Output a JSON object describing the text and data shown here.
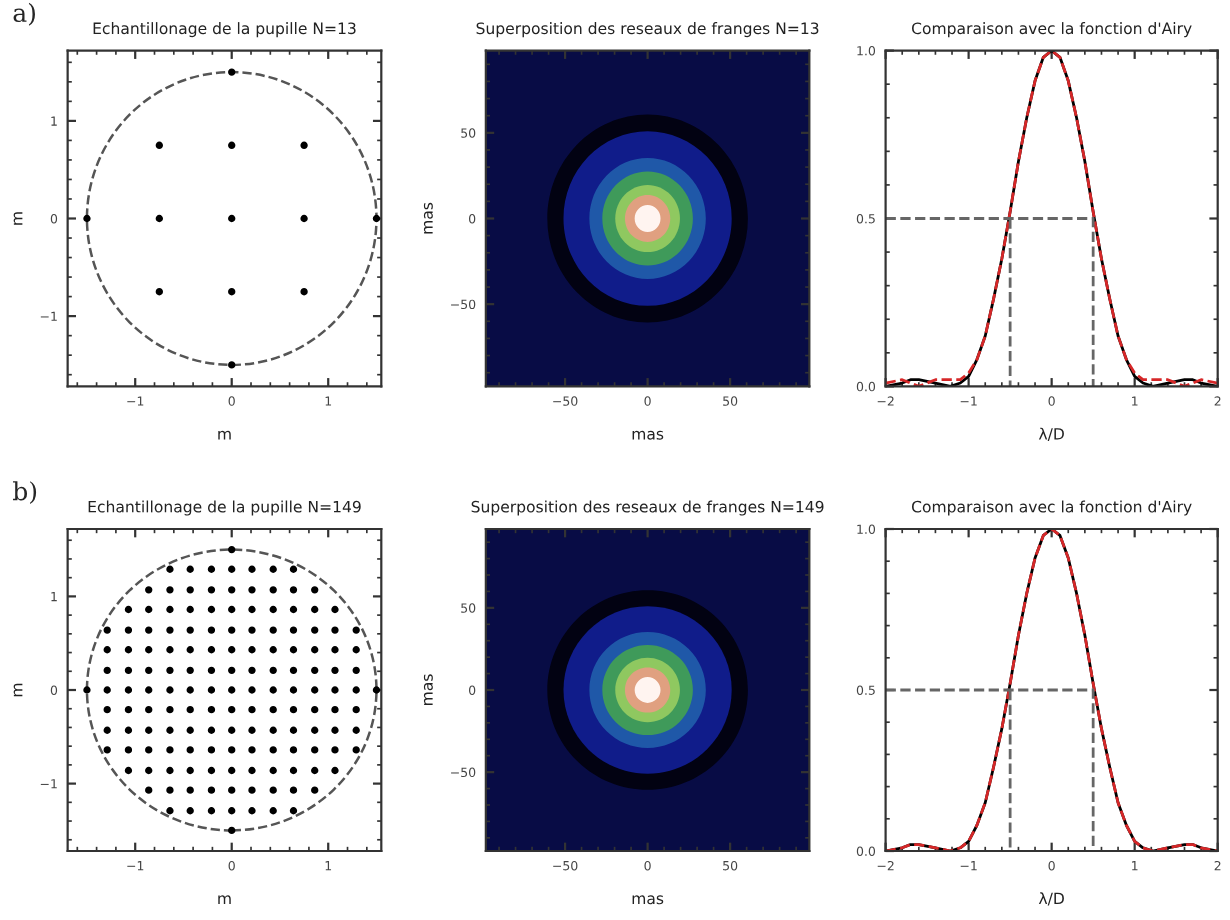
{
  "chart_data": [
    {
      "type": "scatter",
      "title": "Echantillonage de la pupille N=13",
      "xlabel": "m",
      "ylabel": "m",
      "annotations": [
        "a)"
      ],
      "marker": "circle",
      "grid": false,
      "xlim": [
        -1.7,
        1.55
      ],
      "ylim": [
        -1.72,
        1.72
      ],
      "xticks": [
        {
          "value": -1,
          "label": "−1"
        },
        0,
        1
      ],
      "yticks": [
        {
          "value": -1,
          "label": "−1"
        },
        0,
        1
      ],
      "series": [
        {
          "color": "#000000",
          "x": [
            0
          ],
          "values": [
            1.5
          ]
        },
        {
          "color": "#000000",
          "x": [
            -0.75,
            0,
            0.75
          ],
          "values": [
            0.75,
            0.75,
            0.75
          ]
        },
        {
          "color": "#000000",
          "x": [
            -1.5,
            -0.75,
            0,
            0.75,
            1.5
          ],
          "values": [
            0,
            0,
            0,
            0,
            0
          ]
        },
        {
          "color": "#000000",
          "x": [
            -0.75,
            0,
            0.75
          ],
          "values": [
            -0.75,
            -0.75,
            -0.75
          ]
        },
        {
          "color": "#000000",
          "x": [
            0
          ],
          "values": [
            -1.5
          ]
        }
      ]
    },
    {
      "type": "scatter",
      "title": "Superposition des reseaux de franges N=13",
      "xlabel": "mas",
      "ylabel": "mas",
      "xlim": [
        -98,
        98
      ],
      "ylim": [
        -98,
        98
      ],
      "xticks": [
        {
          "value": -50,
          "label": "−50"
        },
        0,
        50
      ],
      "yticks": [
        {
          "value": -50,
          "label": "−50"
        },
        0,
        50
      ]
    },
    {
      "type": "line",
      "title": "Comparaison avec la fonction d'Airy",
      "xlabel": "λ/D",
      "grid": false,
      "marker": "none",
      "xlim": [
        -2,
        2
      ],
      "ylim": [
        0,
        1
      ],
      "xticks": [
        {
          "value": -2,
          "label": "−2"
        },
        {
          "value": -1,
          "label": "−1"
        },
        0,
        1,
        2
      ],
      "yticks": [
        {
          "value": 0,
          "label": "0.0"
        },
        {
          "value": 0.5,
          "label": "0.5"
        },
        {
          "value": 1,
          "label": "1.0"
        }
      ],
      "series": [
        {
          "color": "#000000",
          "line_style": "solid",
          "x": [
            -2,
            -1.8,
            -1.7,
            -1.6,
            -1.4,
            -1.22,
            -1.1,
            -1,
            -0.9,
            -0.8,
            -0.7,
            -0.6,
            -0.5,
            -0.4,
            -0.3,
            -0.2,
            -0.1,
            0,
            0.1,
            0.2,
            0.3,
            0.4,
            0.5,
            0.6,
            0.7,
            0.8,
            0.9,
            1,
            1.1,
            1.22,
            1.4,
            1.6,
            1.7,
            1.8,
            2
          ],
          "values": [
            0,
            0.01,
            0.02,
            0.02,
            0.01,
            0,
            0.01,
            0.03,
            0.08,
            0.15,
            0.26,
            0.38,
            0.52,
            0.67,
            0.8,
            0.91,
            0.98,
            1,
            0.98,
            0.91,
            0.8,
            0.67,
            0.52,
            0.38,
            0.26,
            0.15,
            0.08,
            0.03,
            0.01,
            0,
            0.01,
            0.02,
            0.02,
            0.01,
            0
          ]
        },
        {
          "color": "#d62728",
          "line_style": "dashed",
          "x": [
            -2,
            -1.8,
            -1.7,
            -1.6,
            -1.4,
            -1.22,
            -1.1,
            -1,
            -0.9,
            -0.8,
            -0.7,
            -0.6,
            -0.5,
            -0.4,
            -0.3,
            -0.2,
            -0.1,
            0,
            0.1,
            0.2,
            0.3,
            0.4,
            0.5,
            0.6,
            0.7,
            0.8,
            0.9,
            1,
            1.1,
            1.22,
            1.4,
            1.6,
            1.7,
            1.8,
            2
          ],
          "values": [
            0.01,
            0.02,
            0.01,
            0,
            0.02,
            0.02,
            0.02,
            0.04,
            0.08,
            0.15,
            0.26,
            0.38,
            0.52,
            0.67,
            0.8,
            0.91,
            0.98,
            1,
            0.98,
            0.91,
            0.8,
            0.67,
            0.52,
            0.38,
            0.26,
            0.15,
            0.08,
            0.04,
            0.02,
            0.02,
            0.02,
            0,
            0.01,
            0.02,
            0.01
          ]
        },
        {
          "color": "#666666",
          "line_style": "dashed",
          "x": [
            -2,
            0.5,
            0.5
          ],
          "values": [
            0.5,
            0.5,
            0
          ]
        },
        {
          "color": "#666666",
          "line_style": "dashed",
          "x": [
            -0.5,
            -0.5
          ],
          "values": [
            0.5,
            0
          ]
        }
      ]
    },
    {
      "type": "scatter",
      "title": "Echantillonage de la pupille N=149",
      "xlabel": "m",
      "ylabel": "m",
      "annotations": [
        "b)"
      ],
      "marker": "circle",
      "grid": false,
      "xlim": [
        -1.7,
        1.55
      ],
      "ylim": [
        -1.72,
        1.72
      ],
      "xticks": [
        {
          "value": -1,
          "label": "−1"
        },
        0,
        1
      ],
      "yticks": [
        {
          "value": -1,
          "label": "−1"
        },
        0,
        1
      ],
      "series": [
        {
          "color": "#000000",
          "x": [
            0
          ],
          "values": [
            1.5
          ]
        },
        {
          "color": "#000000",
          "x": [
            -0.64,
            -0.43,
            -0.21,
            0,
            0.21,
            0.43,
            0.64
          ],
          "values": [
            1.29,
            1.29,
            1.29,
            1.29,
            1.29,
            1.29,
            1.29
          ]
        },
        {
          "color": "#000000",
          "x": [
            -0.86,
            -0.64,
            -0.43,
            -0.21,
            0,
            0.21,
            0.43,
            0.64,
            0.86
          ],
          "values": [
            1.07,
            1.07,
            1.07,
            1.07,
            1.07,
            1.07,
            1.07,
            1.07,
            1.07
          ]
        },
        {
          "color": "#000000",
          "x": [
            -1.07,
            -0.86,
            -0.64,
            -0.43,
            -0.21,
            0,
            0.21,
            0.43,
            0.64,
            0.86,
            1.07
          ],
          "values": [
            0.86,
            0.86,
            0.86,
            0.86,
            0.86,
            0.86,
            0.86,
            0.86,
            0.86,
            0.86,
            0.86
          ]
        },
        {
          "color": "#000000",
          "x": [
            -1.29,
            -1.07,
            -0.86,
            -0.64,
            -0.43,
            -0.21,
            0,
            0.21,
            0.43,
            0.64,
            0.86,
            1.07,
            1.29
          ],
          "values": [
            0.64,
            0.64,
            0.64,
            0.64,
            0.64,
            0.64,
            0.64,
            0.64,
            0.64,
            0.64,
            0.64,
            0.64,
            0.64
          ]
        },
        {
          "color": "#000000",
          "x": [
            -1.29,
            -1.07,
            -0.86,
            -0.64,
            -0.43,
            -0.21,
            0,
            0.21,
            0.43,
            0.64,
            0.86,
            1.07,
            1.29
          ],
          "values": [
            0.43,
            0.43,
            0.43,
            0.43,
            0.43,
            0.43,
            0.43,
            0.43,
            0.43,
            0.43,
            0.43,
            0.43,
            0.43
          ]
        },
        {
          "color": "#000000",
          "x": [
            -1.29,
            -1.07,
            -0.86,
            -0.64,
            -0.43,
            -0.21,
            0,
            0.21,
            0.43,
            0.64,
            0.86,
            1.07,
            1.29
          ],
          "values": [
            0.21,
            0.21,
            0.21,
            0.21,
            0.21,
            0.21,
            0.21,
            0.21,
            0.21,
            0.21,
            0.21,
            0.21,
            0.21
          ]
        },
        {
          "color": "#000000",
          "x": [
            -1.5,
            -1.29,
            -1.07,
            -0.86,
            -0.64,
            -0.43,
            -0.21,
            0,
            0.21,
            0.43,
            0.64,
            0.86,
            1.07,
            1.29,
            1.5
          ],
          "values": [
            0,
            0,
            0,
            0,
            0,
            0,
            0,
            0,
            0,
            0,
            0,
            0,
            0,
            0,
            0
          ]
        },
        {
          "color": "#000000",
          "x": [
            -1.29,
            -1.07,
            -0.86,
            -0.64,
            -0.43,
            -0.21,
            0,
            0.21,
            0.43,
            0.64,
            0.86,
            1.07,
            1.29
          ],
          "values": [
            -0.21,
            -0.21,
            -0.21,
            -0.21,
            -0.21,
            -0.21,
            -0.21,
            -0.21,
            -0.21,
            -0.21,
            -0.21,
            -0.21,
            -0.21
          ]
        },
        {
          "color": "#000000",
          "x": [
            -1.29,
            -1.07,
            -0.86,
            -0.64,
            -0.43,
            -0.21,
            0,
            0.21,
            0.43,
            0.64,
            0.86,
            1.07,
            1.29
          ],
          "values": [
            -0.43,
            -0.43,
            -0.43,
            -0.43,
            -0.43,
            -0.43,
            -0.43,
            -0.43,
            -0.43,
            -0.43,
            -0.43,
            -0.43,
            -0.43
          ]
        },
        {
          "color": "#000000",
          "x": [
            -1.29,
            -1.07,
            -0.86,
            -0.64,
            -0.43,
            -0.21,
            0,
            0.21,
            0.43,
            0.64,
            0.86,
            1.07,
            1.29
          ],
          "values": [
            -0.64,
            -0.64,
            -0.64,
            -0.64,
            -0.64,
            -0.64,
            -0.64,
            -0.64,
            -0.64,
            -0.64,
            -0.64,
            -0.64,
            -0.64
          ]
        },
        {
          "color": "#000000",
          "x": [
            -1.07,
            -0.86,
            -0.64,
            -0.43,
            -0.21,
            0,
            0.21,
            0.43,
            0.64,
            0.86,
            1.07
          ],
          "values": [
            -0.86,
            -0.86,
            -0.86,
            -0.86,
            -0.86,
            -0.86,
            -0.86,
            -0.86,
            -0.86,
            -0.86,
            -0.86
          ]
        },
        {
          "color": "#000000",
          "x": [
            -0.86,
            -0.64,
            -0.43,
            -0.21,
            0,
            0.21,
            0.43,
            0.64,
            0.86
          ],
          "values": [
            -1.07,
            -1.07,
            -1.07,
            -1.07,
            -1.07,
            -1.07,
            -1.07,
            -1.07,
            -1.07
          ]
        },
        {
          "color": "#000000",
          "x": [
            -0.64,
            -0.43,
            -0.21,
            0,
            0.21,
            0.43,
            0.64
          ],
          "values": [
            -1.29,
            -1.29,
            -1.29,
            -1.29,
            -1.29,
            -1.29,
            -1.29
          ]
        },
        {
          "color": "#000000",
          "x": [
            0
          ],
          "values": [
            -1.5
          ]
        }
      ]
    },
    {
      "type": "scatter",
      "title": "Superposition des reseaux de franges N=149",
      "xlabel": "mas",
      "ylabel": "mas",
      "xlim": [
        -98,
        98
      ],
      "ylim": [
        -98,
        98
      ],
      "xticks": [
        {
          "value": -50,
          "label": "−50"
        },
        0,
        50
      ],
      "yticks": [
        {
          "value": -50,
          "label": "−50"
        },
        0,
        50
      ]
    },
    {
      "type": "line",
      "title": "Comparaison avec la fonction d'Airy",
      "xlabel": "λ/D",
      "grid": false,
      "marker": "none",
      "xlim": [
        -2,
        2
      ],
      "ylim": [
        0,
        1
      ],
      "xticks": [
        {
          "value": -2,
          "label": "−2"
        },
        {
          "value": -1,
          "label": "−1"
        },
        0,
        1,
        2
      ],
      "yticks": [
        {
          "value": 0,
          "label": "0.0"
        },
        {
          "value": 0.5,
          "label": "0.5"
        },
        {
          "value": 1,
          "label": "1.0"
        }
      ],
      "series": [
        {
          "color": "#000000",
          "line_style": "solid",
          "x": [
            -2,
            -1.8,
            -1.7,
            -1.6,
            -1.4,
            -1.22,
            -1.1,
            -1,
            -0.9,
            -0.8,
            -0.7,
            -0.6,
            -0.5,
            -0.4,
            -0.3,
            -0.2,
            -0.1,
            0,
            0.1,
            0.2,
            0.3,
            0.4,
            0.5,
            0.6,
            0.7,
            0.8,
            0.9,
            1,
            1.1,
            1.22,
            1.4,
            1.6,
            1.7,
            1.8,
            2
          ],
          "values": [
            0,
            0.01,
            0.02,
            0.02,
            0.01,
            0,
            0.01,
            0.03,
            0.08,
            0.15,
            0.26,
            0.38,
            0.52,
            0.67,
            0.8,
            0.91,
            0.98,
            1,
            0.98,
            0.91,
            0.8,
            0.67,
            0.52,
            0.38,
            0.26,
            0.15,
            0.08,
            0.03,
            0.01,
            0,
            0.01,
            0.02,
            0.02,
            0.01,
            0
          ]
        },
        {
          "color": "#d62728",
          "line_style": "dashed",
          "x": [
            -2,
            -1.8,
            -1.7,
            -1.6,
            -1.4,
            -1.22,
            -1.1,
            -1,
            -0.9,
            -0.8,
            -0.7,
            -0.6,
            -0.5,
            -0.4,
            -0.3,
            -0.2,
            -0.1,
            0,
            0.1,
            0.2,
            0.3,
            0.4,
            0.5,
            0.6,
            0.7,
            0.8,
            0.9,
            1,
            1.1,
            1.22,
            1.4,
            1.6,
            1.7,
            1.8,
            2
          ],
          "values": [
            0,
            0.01,
            0.02,
            0.02,
            0.01,
            0,
            0.01,
            0.03,
            0.08,
            0.15,
            0.26,
            0.38,
            0.52,
            0.67,
            0.8,
            0.91,
            0.98,
            1,
            0.98,
            0.91,
            0.8,
            0.67,
            0.52,
            0.38,
            0.26,
            0.15,
            0.08,
            0.03,
            0.01,
            0,
            0.01,
            0.02,
            0.02,
            0.01,
            0
          ]
        },
        {
          "color": "#666666",
          "line_style": "dashed",
          "x": [
            -2,
            0.5,
            0.5
          ],
          "values": [
            0.5,
            0.5,
            0
          ]
        },
        {
          "color": "#666666",
          "line_style": "dashed",
          "x": [
            -0.5,
            -0.5
          ],
          "values": [
            0.5,
            0
          ]
        }
      ]
    }
  ]
}
